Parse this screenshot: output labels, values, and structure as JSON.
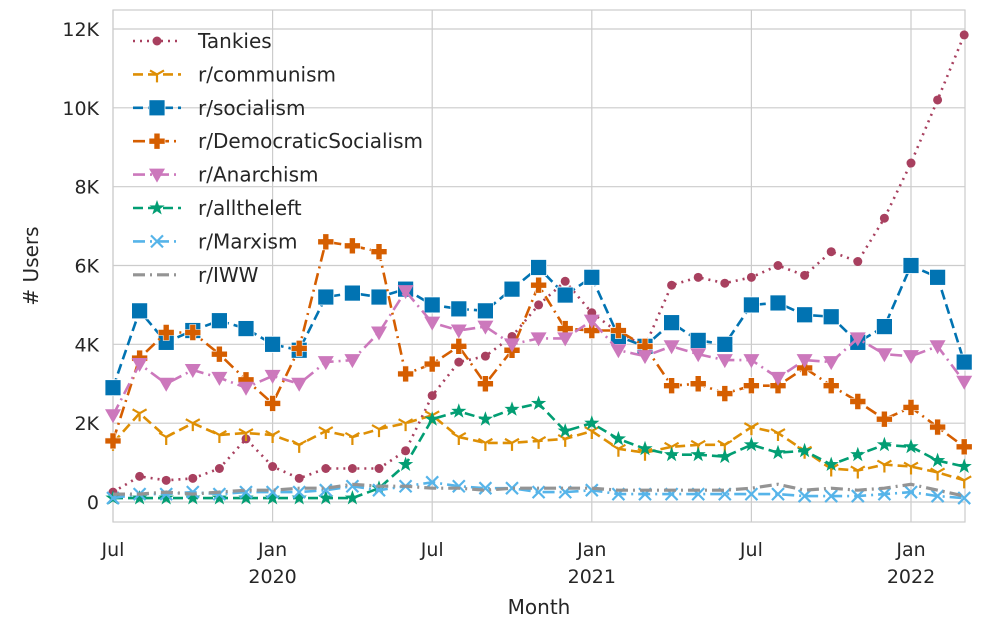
{
  "chart_data": {
    "type": "line",
    "title": "",
    "xlabel": "Month",
    "ylabel": "# Users",
    "ylim": [
      -500,
      12500
    ],
    "yticks": [
      0,
      2000,
      4000,
      6000,
      8000,
      10000,
      12000
    ],
    "ytick_labels": [
      "0",
      "2K",
      "4K",
      "6K",
      "8K",
      "10K",
      "12K"
    ],
    "xticks": [
      {
        "month": "2019-07",
        "label": "Jul",
        "year": ""
      },
      {
        "month": "2020-01",
        "label": "Jan",
        "year": "2020"
      },
      {
        "month": "2020-07",
        "label": "Jul",
        "year": ""
      },
      {
        "month": "2021-01",
        "label": "Jan",
        "year": "2021"
      },
      {
        "month": "2021-07",
        "label": "Jul",
        "year": ""
      },
      {
        "month": "2022-01",
        "label": "Jan",
        "year": "2022"
      }
    ],
    "grid": true,
    "legend_position": "top-left",
    "x": [
      "2019-07",
      "2019-08",
      "2019-09",
      "2019-10",
      "2019-11",
      "2019-12",
      "2020-01",
      "2020-02",
      "2020-03",
      "2020-04",
      "2020-05",
      "2020-06",
      "2020-07",
      "2020-08",
      "2020-09",
      "2020-10",
      "2020-11",
      "2020-12",
      "2021-01",
      "2021-02",
      "2021-03",
      "2021-04",
      "2021-05",
      "2021-06",
      "2021-07",
      "2021-08",
      "2021-09",
      "2021-10",
      "2021-11",
      "2021-12",
      "2022-01",
      "2022-02",
      "2022-03"
    ],
    "series": [
      {
        "name": "Tankies",
        "color": "#a8405f",
        "marker": "circle",
        "dash": "dotted",
        "values": [
          250,
          650,
          550,
          600,
          850,
          1600,
          900,
          600,
          850,
          850,
          850,
          1300,
          2700,
          3550,
          3700,
          4200,
          5000,
          5600,
          4800,
          4300,
          3950,
          5500,
          5700,
          5550,
          5700,
          6000,
          5750,
          6350,
          6100,
          7200,
          8600,
          10200,
          11850
        ]
      },
      {
        "name": "r/communism",
        "color": "#de8f05",
        "marker": "tri-down",
        "dash": "dashed",
        "values": [
          1500,
          2250,
          1650,
          2000,
          1700,
          1750,
          1700,
          1450,
          1800,
          1650,
          1850,
          2000,
          2200,
          1650,
          1500,
          1500,
          1550,
          1600,
          1800,
          1350,
          1250,
          1400,
          1450,
          1450,
          1900,
          1750,
          1300,
          850,
          800,
          950,
          900,
          750,
          550
        ]
      },
      {
        "name": "r/socialism",
        "color": "#0173b2",
        "marker": "square",
        "dash": "dashed",
        "values": [
          2900,
          4850,
          4050,
          4350,
          4600,
          4400,
          4000,
          3850,
          5200,
          5300,
          5200,
          5400,
          5000,
          4900,
          4850,
          5400,
          5950,
          5250,
          5700,
          4200,
          3950,
          4550,
          4100,
          4000,
          5000,
          5050,
          4750,
          4700,
          4050,
          4450,
          6000,
          5700,
          3550
        ]
      },
      {
        "name": "r/DemocraticSocialism",
        "color": "#d55e00",
        "marker": "plus",
        "dash": "dashdot",
        "values": [
          1550,
          3650,
          4300,
          4300,
          3750,
          3100,
          2500,
          3900,
          6600,
          6500,
          6350,
          3250,
          3500,
          3950,
          3000,
          3850,
          5500,
          4400,
          4350,
          4350,
          3950,
          2950,
          3000,
          2750,
          2950,
          2950,
          3400,
          2950,
          2550,
          2100,
          2400,
          1900,
          1400
        ]
      },
      {
        "name": "r/Anarchism",
        "color": "#cc78bc",
        "marker": "triangle-down",
        "dash": "dashdot",
        "values": [
          2200,
          3500,
          3000,
          3350,
          3150,
          2900,
          3200,
          3000,
          3550,
          3600,
          4300,
          5350,
          4550,
          4350,
          4450,
          4000,
          4150,
          4150,
          4600,
          3850,
          3700,
          3950,
          3750,
          3600,
          3600,
          3150,
          3600,
          3550,
          4150,
          3750,
          3700,
          3950,
          3050
        ]
      },
      {
        "name": "r/alltheleft",
        "color": "#029e73",
        "marker": "star",
        "dash": "dashed",
        "values": [
          100,
          100,
          100,
          100,
          100,
          100,
          100,
          100,
          100,
          100,
          350,
          950,
          2100,
          2300,
          2100,
          2350,
          2500,
          1800,
          2000,
          1600,
          1350,
          1200,
          1200,
          1150,
          1450,
          1250,
          1300,
          950,
          1200,
          1450,
          1400,
          1050,
          900
        ]
      },
      {
        "name": "r/Marxism",
        "color": "#56b4e9",
        "marker": "x",
        "dash": "dashdot",
        "values": [
          100,
          200,
          200,
          250,
          200,
          250,
          250,
          250,
          300,
          400,
          300,
          400,
          500,
          400,
          350,
          350,
          250,
          250,
          300,
          200,
          200,
          200,
          200,
          200,
          200,
          200,
          150,
          150,
          150,
          200,
          250,
          150,
          100
        ]
      },
      {
        "name": "r/IWW",
        "color": "#949494",
        "marker": "none",
        "dash": "dashdot",
        "values": [
          200,
          200,
          250,
          200,
          250,
          300,
          300,
          350,
          350,
          450,
          400,
          400,
          350,
          350,
          300,
          350,
          350,
          350,
          350,
          300,
          300,
          300,
          300,
          300,
          350,
          450,
          300,
          350,
          300,
          350,
          450,
          300,
          150
        ]
      }
    ]
  }
}
